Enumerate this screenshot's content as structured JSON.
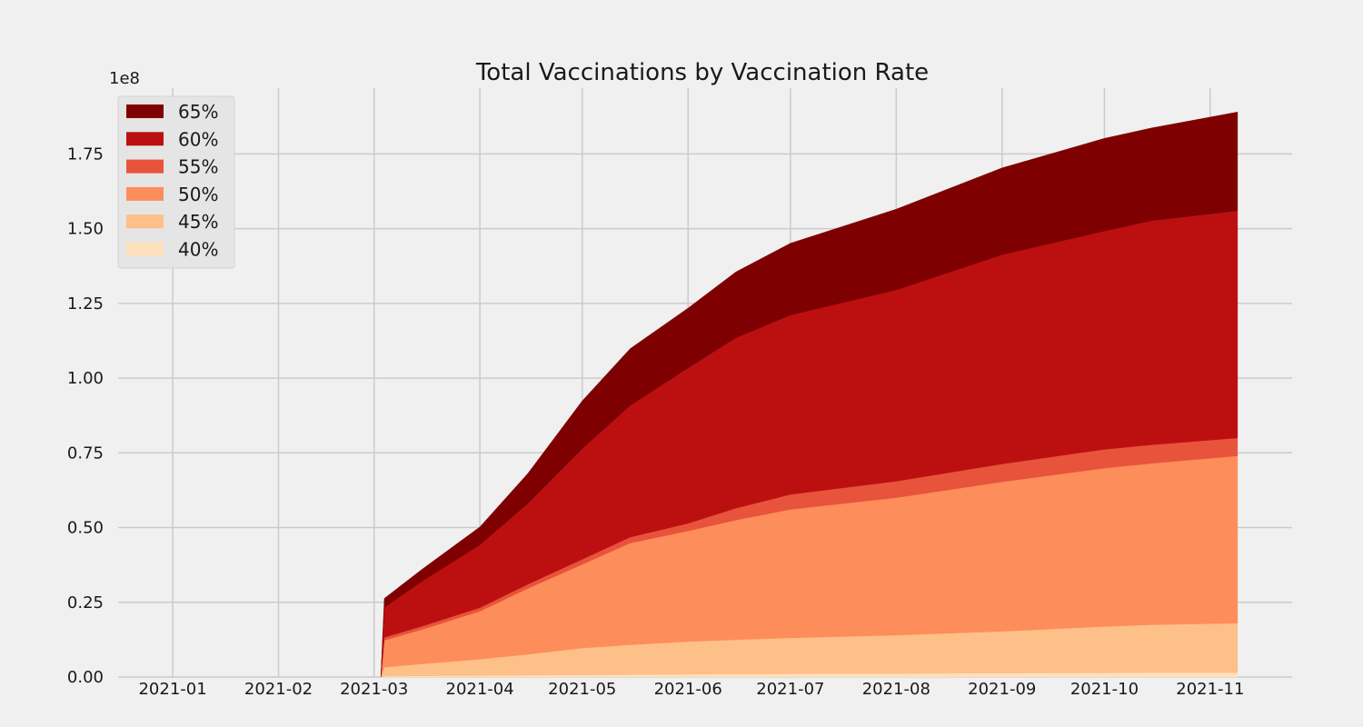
{
  "chart_data": {
    "type": "area",
    "stacked": true,
    "title": "Total Vaccinations by Vaccination Rate",
    "xlabel": "",
    "ylabel": "",
    "y_offset_label": "1e8",
    "x_type": "date",
    "xlim": [
      "2020-12-16",
      "2021-11-25"
    ],
    "ylim": [
      0,
      1.97
    ],
    "y_unit_scale": 100000000,
    "x_ticks": [
      "2021-01-01",
      "2021-02-01",
      "2021-03-01",
      "2021-04-01",
      "2021-05-01",
      "2021-06-01",
      "2021-07-01",
      "2021-08-01",
      "2021-09-01",
      "2021-10-01",
      "2021-11-01"
    ],
    "x_tick_labels": [
      "2021-01",
      "2021-02",
      "2021-03",
      "2021-04",
      "2021-05",
      "2021-06",
      "2021-07",
      "2021-08",
      "2021-09",
      "2021-10",
      "2021-11"
    ],
    "y_ticks": [
      0,
      0.25,
      0.5,
      0.75,
      1.0,
      1.25,
      1.5,
      1.75
    ],
    "y_tick_labels": [
      "0.00",
      "0.25",
      "0.50",
      "0.75",
      "1.00",
      "1.25",
      "1.50",
      "1.75"
    ],
    "grid": true,
    "legend_placement": "top-left",
    "x": [
      "2021-03-03",
      "2021-03-04",
      "2021-03-15",
      "2021-04-01",
      "2021-04-15",
      "2021-05-01",
      "2021-05-15",
      "2021-06-01",
      "2021-06-15",
      "2021-07-01",
      "2021-08-01",
      "2021-09-01",
      "2021-10-01",
      "2021-10-15",
      "2021-11-09"
    ],
    "series": [
      {
        "name": "40%",
        "color": "#fee0bd",
        "values": [
          0,
          0.003,
          0.004,
          0.005,
          0.006,
          0.007,
          0.008,
          0.009,
          0.01,
          0.011,
          0.012,
          0.013,
          0.014,
          0.015,
          0.015
        ]
      },
      {
        "name": "45%",
        "color": "#fdc088",
        "values": [
          0,
          0.03,
          0.04,
          0.055,
          0.07,
          0.09,
          0.1,
          0.11,
          0.115,
          0.12,
          0.128,
          0.14,
          0.155,
          0.16,
          0.165
        ]
      },
      {
        "name": "50%",
        "color": "#fd8d5a",
        "values": [
          0,
          0.09,
          0.115,
          0.16,
          0.22,
          0.28,
          0.34,
          0.37,
          0.4,
          0.43,
          0.46,
          0.5,
          0.53,
          0.54,
          0.56
        ]
      },
      {
        "name": "55%",
        "color": "#e8533b",
        "values": [
          0,
          0.01,
          0.011,
          0.012,
          0.014,
          0.017,
          0.02,
          0.025,
          0.04,
          0.05,
          0.055,
          0.06,
          0.063,
          0.062,
          0.06
        ]
      },
      {
        "name": "60%",
        "color": "#bc1010",
        "values": [
          0,
          0.1,
          0.15,
          0.21,
          0.27,
          0.37,
          0.44,
          0.52,
          0.57,
          0.6,
          0.64,
          0.7,
          0.73,
          0.75,
          0.76
        ]
      },
      {
        "name": "65%",
        "color": "#7f0000",
        "values": [
          0,
          0.03,
          0.04,
          0.06,
          0.1,
          0.16,
          0.19,
          0.2,
          0.22,
          0.24,
          0.27,
          0.29,
          0.31,
          0.31,
          0.33
        ]
      }
    ],
    "colors": {
      "background": "#f0f0f0",
      "grid": "#cbcbcb",
      "legend_bg": "#e5e5e5",
      "text": "#1a1a1a"
    }
  }
}
